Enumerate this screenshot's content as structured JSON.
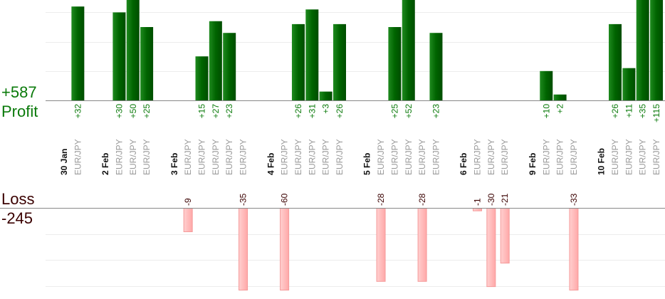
{
  "chart_data": {
    "type": "bar",
    "title": "",
    "profit": {
      "label": "Profit",
      "total": "+587",
      "color": "#006400",
      "label_color": "#0a7a0a"
    },
    "loss": {
      "label": "Loss",
      "total": "-245",
      "color": "#ffb0b0",
      "label_color": "#3a0000"
    },
    "grid_step": 10,
    "grid": true,
    "days": [
      {
        "date": "30 Jan",
        "trades": [
          {
            "pair": "EUR/JPY",
            "value": 32
          }
        ]
      },
      {
        "date": "2 Feb",
        "trades": [
          {
            "pair": "EUR/JPY",
            "value": 30
          },
          {
            "pair": "EUR/JPY",
            "value": 50
          },
          {
            "pair": "EUR/JPY",
            "value": 25
          }
        ]
      },
      {
        "date": "3 Feb",
        "trades": [
          {
            "pair": "EUR/JPY",
            "value": -9
          },
          {
            "pair": "EUR/JPY",
            "value": 15
          },
          {
            "pair": "EUR/JPY",
            "value": 27
          },
          {
            "pair": "EUR/JPY",
            "value": 23
          },
          {
            "pair": "EUR/JPY",
            "value": -35
          }
        ]
      },
      {
        "date": "4 Feb",
        "trades": [
          {
            "pair": "EUR/JPY",
            "value": -60
          },
          {
            "pair": "EUR/JPY",
            "value": 26
          },
          {
            "pair": "EUR/JPY",
            "value": 31
          },
          {
            "pair": "EUR/JPY",
            "value": 3
          },
          {
            "pair": "EUR/JPY",
            "value": 26
          }
        ]
      },
      {
        "date": "5 Feb",
        "trades": [
          {
            "pair": "EUR/JPY",
            "value": -28
          },
          {
            "pair": "EUR/JPY",
            "value": 25
          },
          {
            "pair": "EUR/JPY",
            "value": 52
          },
          {
            "pair": "EUR/JPY",
            "value": -28
          },
          {
            "pair": "EUR/JPY",
            "value": 23
          }
        ]
      },
      {
        "date": "6 Feb",
        "trades": [
          {
            "pair": "EUR/JPY",
            "value": -1
          },
          {
            "pair": "EUR/JPY",
            "value": -30
          },
          {
            "pair": "EUR/JPY",
            "value": -21
          }
        ]
      },
      {
        "date": "9 Feb",
        "trades": [
          {
            "pair": "EUR/JPY",
            "value": 10
          },
          {
            "pair": "EUR/JPY",
            "value": 2
          },
          {
            "pair": "EUR/JPY",
            "value": -33
          }
        ]
      },
      {
        "date": "10 Feb",
        "trades": [
          {
            "pair": "EUR/JPY",
            "value": 26
          },
          {
            "pair": "EUR/JPY",
            "value": 11
          },
          {
            "pair": "EUR/JPY",
            "value": 35
          },
          {
            "pair": "EUR/JPY",
            "value": 115
          }
        ]
      }
    ]
  }
}
